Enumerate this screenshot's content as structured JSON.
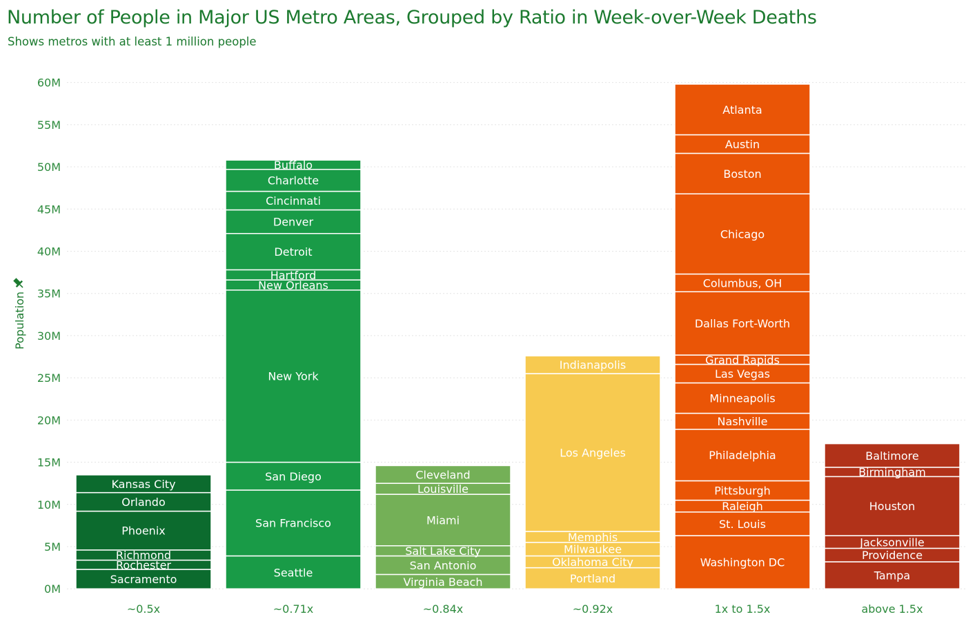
{
  "title": "Number of People in Major US Metro Areas, Grouped by Ratio in Week-over-Week Deaths",
  "subtitle": "Shows metros with at least 1 million people",
  "chart_data": {
    "type": "bar",
    "stacked": true,
    "ylabel": "Population",
    "xlabel": "",
    "ylim": [
      -0.8,
      62.5
    ],
    "yticks": [
      0,
      5,
      10,
      15,
      20,
      25,
      30,
      35,
      40,
      45,
      50,
      55,
      60
    ],
    "ytick_labels": [
      "0M",
      "5M",
      "10M",
      "15M",
      "20M",
      "25M",
      "30M",
      "35M",
      "40M",
      "45M",
      "50M",
      "55M",
      "60M"
    ],
    "grid": true,
    "legend": "none",
    "categories": [
      {
        "label": "~0.5x",
        "color": "#0c6b2e",
        "segments": [
          {
            "name": "Sacramento",
            "value": 2.3
          },
          {
            "name": "Rochester",
            "value": 1.1
          },
          {
            "name": "Richmond",
            "value": 1.2
          },
          {
            "name": "Phoenix",
            "value": 4.6
          },
          {
            "name": "Orlando",
            "value": 2.2
          },
          {
            "name": "Kansas City",
            "value": 2.1
          }
        ]
      },
      {
        "label": "~0.71x",
        "color": "#199b47",
        "segments": [
          {
            "name": "Seattle",
            "value": 3.9
          },
          {
            "name": "San Francisco",
            "value": 7.8
          },
          {
            "name": "San Diego",
            "value": 3.3
          },
          {
            "name": "New York",
            "value": 20.4
          },
          {
            "name": "New Orleans",
            "value": 1.2
          },
          {
            "name": "Hartford",
            "value": 1.2
          },
          {
            "name": "Detroit",
            "value": 4.3
          },
          {
            "name": "Denver",
            "value": 2.8
          },
          {
            "name": "Cincinnati",
            "value": 2.2
          },
          {
            "name": "Charlotte",
            "value": 2.6
          },
          {
            "name": "Buffalo",
            "value": 1.1
          }
        ]
      },
      {
        "label": "~0.84x",
        "color": "#74b057",
        "segments": [
          {
            "name": "Virginia Beach",
            "value": 1.7
          },
          {
            "name": "San Antonio",
            "value": 2.2
          },
          {
            "name": "Salt Lake City",
            "value": 1.2
          },
          {
            "name": "Miami",
            "value": 6.1
          },
          {
            "name": "Louisville",
            "value": 1.3
          },
          {
            "name": "Cleveland",
            "value": 2.1
          }
        ]
      },
      {
        "label": "~0.92x",
        "color": "#f7ca50",
        "segments": [
          {
            "name": "Portland",
            "value": 2.5
          },
          {
            "name": "Oklahoma City",
            "value": 1.4
          },
          {
            "name": "Milwaukee",
            "value": 1.6
          },
          {
            "name": "Memphis",
            "value": 1.3
          },
          {
            "name": "Los Angeles",
            "value": 18.7
          },
          {
            "name": "Indianapolis",
            "value": 2.1
          }
        ]
      },
      {
        "label": "1x to 1.5x",
        "color": "#ea5506",
        "segments": [
          {
            "name": "Washington DC",
            "value": 6.3
          },
          {
            "name": "St. Louis",
            "value": 2.8
          },
          {
            "name": "Raleigh",
            "value": 1.4
          },
          {
            "name": "Pittsburgh",
            "value": 2.3
          },
          {
            "name": "Philadelphia",
            "value": 6.1
          },
          {
            "name": "Nashville",
            "value": 1.9
          },
          {
            "name": "Minneapolis",
            "value": 3.6
          },
          {
            "name": "Las Vegas",
            "value": 2.2
          },
          {
            "name": "Grand Rapids",
            "value": 1.1
          },
          {
            "name": "Dallas Fort-Worth",
            "value": 7.5
          },
          {
            "name": "Columbus, OH",
            "value": 2.1
          },
          {
            "name": "Chicago",
            "value": 9.5
          },
          {
            "name": "Boston",
            "value": 4.8
          },
          {
            "name": "Austin",
            "value": 2.2
          },
          {
            "name": "Atlanta",
            "value": 6.0
          }
        ]
      },
      {
        "label": "above 1.5x",
        "color": "#b13219",
        "segments": [
          {
            "name": "Tampa",
            "value": 3.2
          },
          {
            "name": "Providence",
            "value": 1.6
          },
          {
            "name": "Jacksonville",
            "value": 1.5
          },
          {
            "name": "Houston",
            "value": 7.0
          },
          {
            "name": "Birmingham",
            "value": 1.1
          },
          {
            "name": "Baltimore",
            "value": 2.8
          }
        ]
      }
    ]
  }
}
